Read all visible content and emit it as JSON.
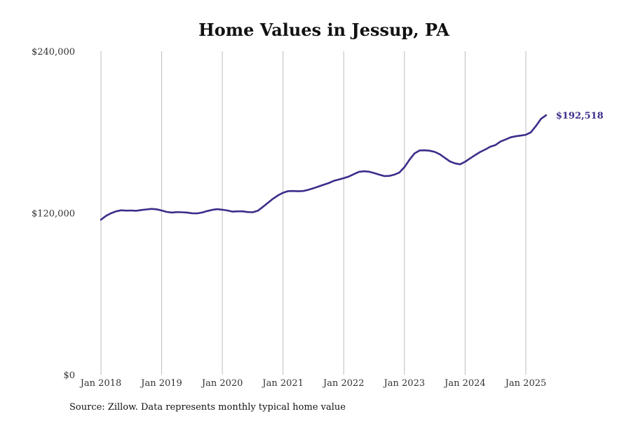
{
  "chart_data": {
    "type": "line",
    "title": "Home Values in Jessup, PA",
    "xlabel": "",
    "ylabel": "",
    "ylim": [
      0,
      240000
    ],
    "yticks": [
      {
        "value": 0,
        "label": "$0"
      },
      {
        "value": 120000,
        "label": "$120,000"
      },
      {
        "value": 240000,
        "label": "$240,000"
      }
    ],
    "xticks": [
      {
        "value": "2018-01",
        "label": "Jan 2018"
      },
      {
        "value": "2019-01",
        "label": "Jan 2019"
      },
      {
        "value": "2020-01",
        "label": "Jan 2020"
      },
      {
        "value": "2021-01",
        "label": "Jan 2021"
      },
      {
        "value": "2022-01",
        "label": "Jan 2022"
      },
      {
        "value": "2023-01",
        "label": "Jan 2023"
      },
      {
        "value": "2024-01",
        "label": "Jan 2024"
      },
      {
        "value": "2025-01",
        "label": "Jan 2025"
      }
    ],
    "grid": {
      "vertical": true,
      "horizontal": false
    },
    "line_color": "#3a2e8a",
    "grid_color": "#bdbdbd",
    "end_label": "$192,518",
    "series": [
      {
        "x": [
          "2018-01",
          "2018-02",
          "2018-03",
          "2018-04",
          "2018-05",
          "2018-06",
          "2018-07",
          "2018-08",
          "2018-09",
          "2018-10",
          "2018-11",
          "2018-12",
          "2019-01",
          "2019-02",
          "2019-03",
          "2019-04",
          "2019-05",
          "2019-06",
          "2019-07",
          "2019-08",
          "2019-09",
          "2019-10",
          "2019-11",
          "2019-12",
          "2020-01",
          "2020-02",
          "2020-03",
          "2020-04",
          "2020-05",
          "2020-06",
          "2020-07",
          "2020-08",
          "2020-09",
          "2020-10",
          "2020-11",
          "2020-12",
          "2021-01",
          "2021-02",
          "2021-03",
          "2021-04",
          "2021-05",
          "2021-06",
          "2021-07",
          "2021-08",
          "2021-09",
          "2021-10",
          "2021-11",
          "2021-12",
          "2022-01",
          "2022-02",
          "2022-03",
          "2022-04",
          "2022-05",
          "2022-06",
          "2022-07",
          "2022-08",
          "2022-09",
          "2022-10",
          "2022-11",
          "2022-12",
          "2023-01",
          "2023-02",
          "2023-03",
          "2023-04",
          "2023-05",
          "2023-06",
          "2023-07",
          "2023-08",
          "2023-09",
          "2023-10",
          "2023-11",
          "2023-12",
          "2024-01",
          "2024-02",
          "2024-03",
          "2024-04",
          "2024-05",
          "2024-06",
          "2024-07",
          "2024-08",
          "2024-09",
          "2024-10",
          "2024-11",
          "2024-12",
          "2025-01",
          "2025-02",
          "2025-03",
          "2025-04",
          "2025-05"
        ],
        "values": [
          115000,
          117800,
          119800,
          121200,
          122000,
          121700,
          121800,
          121600,
          122200,
          122600,
          123000,
          122700,
          121800,
          120800,
          120300,
          120600,
          120500,
          120300,
          119800,
          119700,
          120300,
          121400,
          122300,
          122800,
          122400,
          121800,
          121000,
          121200,
          121200,
          120700,
          120500,
          121600,
          124500,
          127500,
          130500,
          133000,
          135000,
          136200,
          136300,
          136100,
          136300,
          137200,
          138300,
          139600,
          140900,
          142100,
          143800,
          144800,
          145800,
          147000,
          148800,
          150500,
          150900,
          150600,
          149600,
          148400,
          147400,
          147500,
          148400,
          150000,
          154000,
          159500,
          164200,
          166400,
          166500,
          166200,
          165300,
          163500,
          160800,
          158200,
          156800,
          156100,
          158000,
          160500,
          163000,
          165300,
          167100,
          169200,
          170400,
          173000,
          174500,
          176100,
          176900,
          177400,
          178000,
          179800,
          184500,
          189800,
          192518
        ]
      }
    ]
  },
  "footer": {
    "source": "Source: Zillow. Data represents monthly typical home value"
  }
}
